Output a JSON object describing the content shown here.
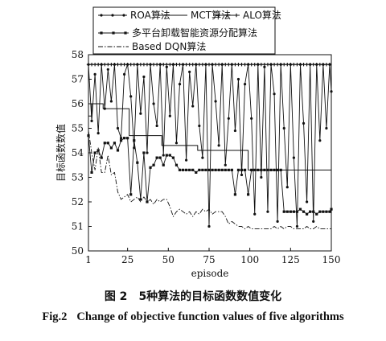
{
  "chart_data": {
    "type": "line",
    "title": "",
    "xlabel": "episode",
    "ylabel": "目标函数数值",
    "xlim": [
      1,
      150
    ],
    "ylim": [
      50,
      58
    ],
    "x_ticks": [
      1,
      25,
      50,
      75,
      100,
      125,
      150
    ],
    "y_ticks": [
      50,
      51,
      52,
      53,
      54,
      55,
      56,
      57,
      58
    ],
    "legend_position": "top",
    "grid": false,
    "series": [
      {
        "name": "ROA算法",
        "style": "solid-dot",
        "x": [
          1,
          3,
          5,
          7,
          9,
          11,
          13,
          15,
          17,
          19,
          21,
          23,
          25,
          27,
          29,
          31,
          33,
          35,
          37,
          39,
          41,
          43,
          45,
          47,
          49,
          51,
          53,
          55,
          57,
          59,
          61,
          63,
          65,
          67,
          69,
          71,
          73,
          75,
          77,
          79,
          81,
          83,
          85,
          87,
          89,
          91,
          93,
          95,
          97,
          99,
          101,
          103,
          105,
          107,
          109,
          111,
          113,
          115,
          117,
          119,
          121,
          123,
          125,
          127,
          129,
          131,
          133,
          135,
          137,
          139,
          141,
          143,
          145,
          147,
          149,
          150
        ],
        "values": [
          57.6,
          55.3,
          57.2,
          54.8,
          57.6,
          55.8,
          57.4,
          56.1,
          57.6,
          55.0,
          54.6,
          57.2,
          57.6,
          56.3,
          54.2,
          57.6,
          55.6,
          57.1,
          54.0,
          57.6,
          56.0,
          55.1,
          57.6,
          53.9,
          57.5,
          55.5,
          57.6,
          54.4,
          56.8,
          57.6,
          53.7,
          57.3,
          55.9,
          57.6,
          55.1,
          53.8,
          57.6,
          51.0,
          57.6,
          56.1,
          54.3,
          57.6,
          53.5,
          55.4,
          57.6,
          54.9,
          57.0,
          53.1,
          56.8,
          57.6,
          55.4,
          51.5,
          57.6,
          53.0,
          57.5,
          51.6,
          57.6,
          56.4,
          51.2,
          57.6,
          55.0,
          52.6,
          57.6,
          53.8,
          51.0,
          57.6,
          55.2,
          52.0,
          57.6,
          51.2,
          57.6,
          54.5,
          57.6,
          55.0,
          57.6,
          56.5
        ]
      },
      {
        "name": "MCT算法",
        "style": "solid",
        "x": [
          1,
          3,
          3,
          10,
          10,
          26,
          26,
          46,
          46,
          68,
          68,
          99,
          99,
          150
        ],
        "values": [
          55.5,
          55.5,
          56.0,
          56.0,
          55.8,
          55.8,
          54.7,
          54.7,
          54.3,
          54.3,
          54.1,
          54.1,
          53.3,
          53.3
        ]
      },
      {
        "name": "ALO算法",
        "style": "solid-star",
        "x": [
          1,
          150
        ],
        "values": [
          57.6,
          57.6
        ]
      },
      {
        "name": "多平台卸载智能资源分配算法",
        "style": "solid-square",
        "x": [
          1,
          3,
          5,
          7,
          9,
          11,
          13,
          15,
          17,
          19,
          21,
          23,
          25,
          27,
          29,
          31,
          33,
          35,
          37,
          39,
          41,
          43,
          45,
          47,
          49,
          51,
          53,
          55,
          57,
          59,
          61,
          63,
          65,
          67,
          69,
          71,
          73,
          75,
          77,
          79,
          81,
          83,
          85,
          87,
          89,
          91,
          93,
          95,
          97,
          99,
          101,
          103,
          105,
          107,
          109,
          111,
          113,
          115,
          117,
          119,
          121,
          123,
          125,
          127,
          129,
          131,
          133,
          135,
          137,
          139,
          141,
          143,
          145,
          147,
          149,
          150
        ],
        "values": [
          54.7,
          53.2,
          54.0,
          54.1,
          53.8,
          54.4,
          54.4,
          54.2,
          54.4,
          54.1,
          54.5,
          54.6,
          54.6,
          52.3,
          54.5,
          53.6,
          52.1,
          54.0,
          52.0,
          53.4,
          53.5,
          53.8,
          53.8,
          53.5,
          53.9,
          53.9,
          53.8,
          53.5,
          53.3,
          53.3,
          53.3,
          53.3,
          53.3,
          53.2,
          53.3,
          53.3,
          53.3,
          53.3,
          53.3,
          53.3,
          53.3,
          53.3,
          53.3,
          53.3,
          53.3,
          52.3,
          53.3,
          53.3,
          53.3,
          52.3,
          53.3,
          53.3,
          53.3,
          53.3,
          53.3,
          53.3,
          53.3,
          53.3,
          53.3,
          53.3,
          51.6,
          51.6,
          51.6,
          51.6,
          51.6,
          51.7,
          51.6,
          51.5,
          51.6,
          51.6,
          51.5,
          51.6,
          51.6,
          51.6,
          51.6,
          51.7
        ]
      },
      {
        "name": "Based DQN算法",
        "style": "dash-dot",
        "x": [
          1,
          3,
          5,
          7,
          9,
          11,
          13,
          15,
          17,
          19,
          21,
          23,
          25,
          27,
          29,
          31,
          33,
          35,
          37,
          39,
          41,
          43,
          45,
          47,
          49,
          51,
          53,
          55,
          57,
          59,
          61,
          63,
          65,
          67,
          69,
          71,
          73,
          75,
          77,
          79,
          81,
          83,
          85,
          87,
          89,
          91,
          93,
          95,
          97,
          99,
          101,
          103,
          105,
          107,
          109,
          111,
          113,
          115,
          117,
          119,
          121,
          123,
          125,
          127,
          129,
          131,
          133,
          135,
          137,
          139,
          141,
          143,
          145,
          147,
          149,
          150
        ],
        "values": [
          54.9,
          54.0,
          53.3,
          54.2,
          53.2,
          53.2,
          53.9,
          53.1,
          53.2,
          52.4,
          52.1,
          52.2,
          52.3,
          52.0,
          52.1,
          52.2,
          52.0,
          52.2,
          52.0,
          52.1,
          51.9,
          52.1,
          52.0,
          52.1,
          52.1,
          51.8,
          51.4,
          51.6,
          51.7,
          51.6,
          51.5,
          51.6,
          51.4,
          51.6,
          51.5,
          51.7,
          51.6,
          51.7,
          51.5,
          51.6,
          51.6,
          51.6,
          51.4,
          51.1,
          51.2,
          51.1,
          51.0,
          51.0,
          50.9,
          51.0,
          50.9,
          50.9,
          50.9,
          50.9,
          50.9,
          50.9,
          50.9,
          51.0,
          50.9,
          51.0,
          50.9,
          51.0,
          51.0,
          50.9,
          50.9,
          50.9,
          50.9,
          51.0,
          50.9,
          50.9,
          51.0,
          50.9,
          50.9,
          50.9,
          50.9,
          50.9
        ]
      }
    ]
  },
  "caption": {
    "cn_number": "图 2",
    "cn_text": "5种算法的目标函数数值变化",
    "en_number": "Fig.2",
    "en_text": "Change of objective function values of five algorithms"
  }
}
